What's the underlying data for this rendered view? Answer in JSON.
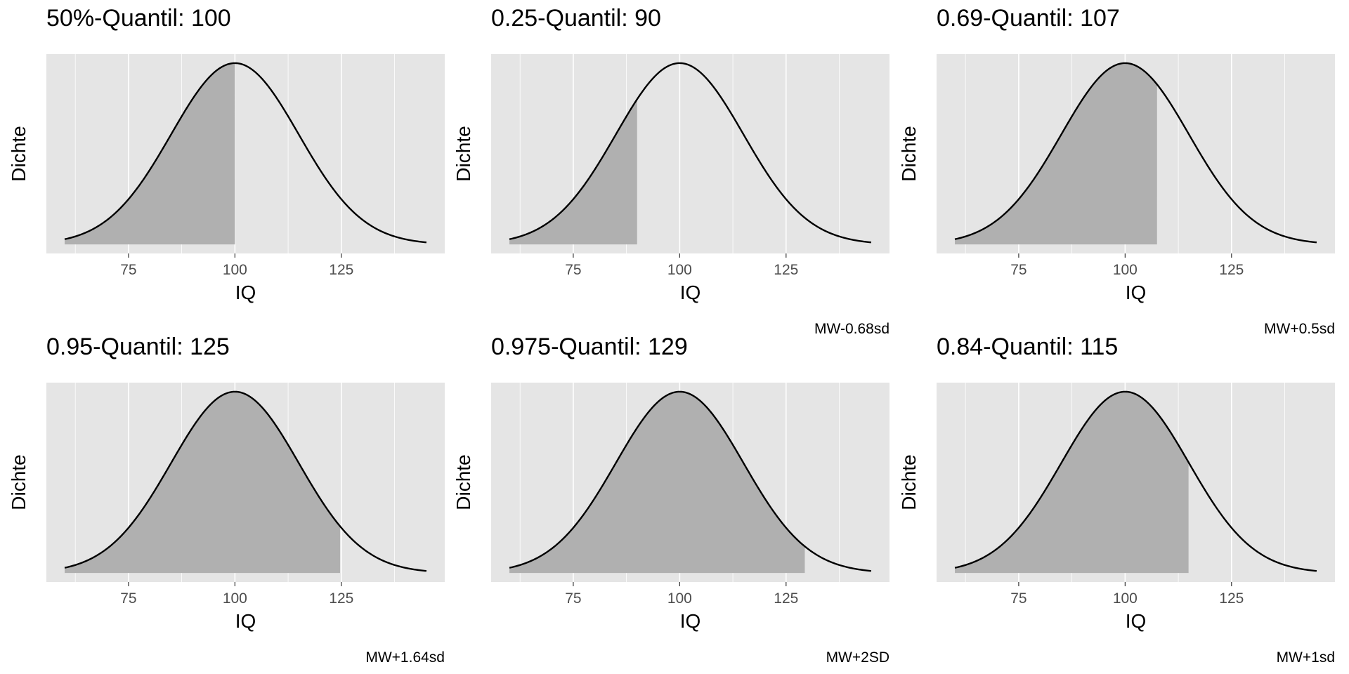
{
  "colors": {
    "panel_background": "#e5e5e5",
    "grid": "#ffffff",
    "shaded_area": "#b0b0b0",
    "curve": "#000000",
    "tick_text": "#4d4d4d"
  },
  "chart_data": [
    {
      "type": "area",
      "title": "50%-Quantil: 100",
      "caption": "",
      "xlabel": "IQ",
      "ylabel": "Dichte",
      "distribution": {
        "name": "normal",
        "mean": 100,
        "sd": 15
      },
      "x_range": [
        60,
        145
      ],
      "xlim": [
        55.7,
        149.3
      ],
      "x_ticks": [
        75,
        100,
        125
      ],
      "x_tick_labels": [
        "75",
        "100",
        "125"
      ],
      "y_tick_labels": [],
      "shade_from": 60,
      "shade_to": 100,
      "grid": true,
      "legend": "none"
    },
    {
      "type": "area",
      "title": "0.25-Quantil: 90",
      "caption": "MW-0.68sd",
      "xlabel": "IQ",
      "ylabel": "Dichte",
      "distribution": {
        "name": "normal",
        "mean": 100,
        "sd": 15
      },
      "x_range": [
        60,
        145
      ],
      "xlim": [
        55.7,
        149.3
      ],
      "x_ticks": [
        75,
        100,
        125
      ],
      "x_tick_labels": [
        "75",
        "100",
        "125"
      ],
      "y_tick_labels": [],
      "shade_from": 60,
      "shade_to": 90,
      "grid": true,
      "legend": "none"
    },
    {
      "type": "area",
      "title": "0.69-Quantil: 107",
      "caption": "MW+0.5sd",
      "xlabel": "IQ",
      "ylabel": "Dichte",
      "distribution": {
        "name": "normal",
        "mean": 100,
        "sd": 15
      },
      "x_range": [
        60,
        145
      ],
      "xlim": [
        55.7,
        149.3
      ],
      "x_ticks": [
        75,
        100,
        125
      ],
      "x_tick_labels": [
        "75",
        "100",
        "125"
      ],
      "y_tick_labels": [],
      "shade_from": 60,
      "shade_to": 107.5,
      "grid": true,
      "legend": "none"
    },
    {
      "type": "area",
      "title": "0.95-Quantil: 125",
      "caption": "MW+1.64sd",
      "xlabel": "IQ",
      "ylabel": "Dichte",
      "distribution": {
        "name": "normal",
        "mean": 100,
        "sd": 15
      },
      "x_range": [
        60,
        145
      ],
      "xlim": [
        55.7,
        149.3
      ],
      "x_ticks": [
        75,
        100,
        125
      ],
      "x_tick_labels": [
        "75",
        "100",
        "125"
      ],
      "y_tick_labels": [],
      "shade_from": 60,
      "shade_to": 124.7,
      "grid": true,
      "legend": "none"
    },
    {
      "type": "area",
      "title": "0.975-Quantil: 129",
      "caption": "MW+2SD",
      "xlabel": "IQ",
      "ylabel": "Dichte",
      "distribution": {
        "name": "normal",
        "mean": 100,
        "sd": 15
      },
      "x_range": [
        60,
        145
      ],
      "xlim": [
        55.7,
        149.3
      ],
      "x_ticks": [
        75,
        100,
        125
      ],
      "x_tick_labels": [
        "75",
        "100",
        "125"
      ],
      "y_tick_labels": [],
      "shade_from": 60,
      "shade_to": 129.4,
      "grid": true,
      "legend": "none"
    },
    {
      "type": "area",
      "title": "0.84-Quantil: 115",
      "caption": "MW+1sd",
      "xlabel": "IQ",
      "ylabel": "Dichte",
      "distribution": {
        "name": "normal",
        "mean": 100,
        "sd": 15
      },
      "x_range": [
        60,
        145
      ],
      "xlim": [
        55.7,
        149.3
      ],
      "x_ticks": [
        75,
        100,
        125
      ],
      "x_tick_labels": [
        "75",
        "100",
        "125"
      ],
      "y_tick_labels": [],
      "shade_from": 60,
      "shade_to": 114.9,
      "grid": true,
      "legend": "none"
    }
  ]
}
